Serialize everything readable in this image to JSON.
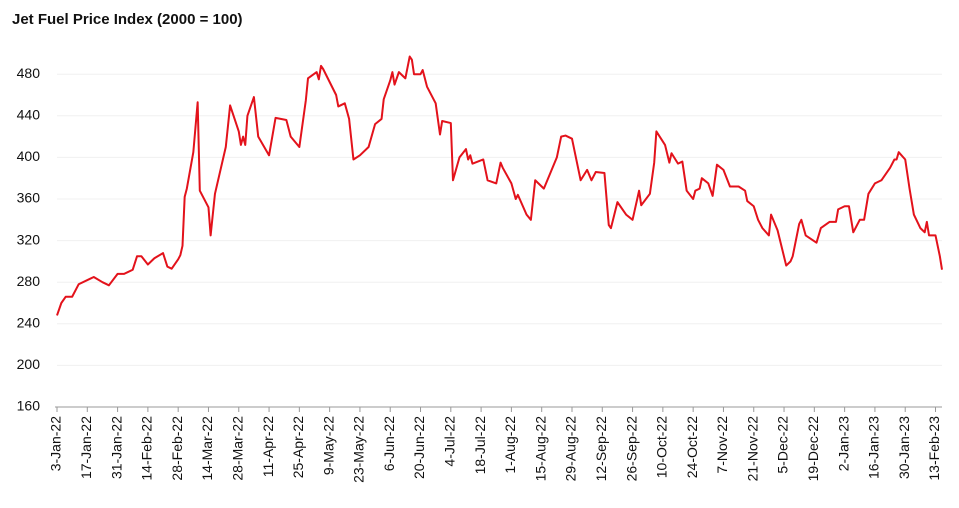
{
  "chart_data": {
    "type": "line",
    "title": "Jet Fuel Price Index (2000 = 100)",
    "color": "#e3121b",
    "grid": true,
    "ylim": [
      160,
      500
    ],
    "yticks": [
      160,
      200,
      240,
      280,
      320,
      360,
      400,
      440,
      480
    ],
    "xlim": [
      "2022-01-03",
      "2023-02-16"
    ],
    "xticks": [
      {
        "value": "2022-01-03",
        "label": "3-Jan-22"
      },
      {
        "value": "2022-01-17",
        "label": "17-Jan-22"
      },
      {
        "value": "2022-01-31",
        "label": "31-Jan-22"
      },
      {
        "value": "2022-02-14",
        "label": "14-Feb-22"
      },
      {
        "value": "2022-02-28",
        "label": "28-Feb-22"
      },
      {
        "value": "2022-03-14",
        "label": "14-Mar-22"
      },
      {
        "value": "2022-03-28",
        "label": "28-Mar-22"
      },
      {
        "value": "2022-04-11",
        "label": "11-Apr-22"
      },
      {
        "value": "2022-04-25",
        "label": "25-Apr-22"
      },
      {
        "value": "2022-05-09",
        "label": "9-May-22"
      },
      {
        "value": "2022-05-23",
        "label": "23-May-22"
      },
      {
        "value": "2022-06-06",
        "label": "6-Jun-22"
      },
      {
        "value": "2022-06-20",
        "label": "20-Jun-22"
      },
      {
        "value": "2022-07-04",
        "label": "4-Jul-22"
      },
      {
        "value": "2022-07-18",
        "label": "18-Jul-22"
      },
      {
        "value": "2022-08-01",
        "label": "1-Aug-22"
      },
      {
        "value": "2022-08-15",
        "label": "15-Aug-22"
      },
      {
        "value": "2022-08-29",
        "label": "29-Aug-22"
      },
      {
        "value": "2022-09-12",
        "label": "12-Sep-22"
      },
      {
        "value": "2022-09-26",
        "label": "26-Sep-22"
      },
      {
        "value": "2022-10-10",
        "label": "10-Oct-22"
      },
      {
        "value": "2022-10-24",
        "label": "24-Oct-22"
      },
      {
        "value": "2022-11-07",
        "label": "7-Nov-22"
      },
      {
        "value": "2022-11-21",
        "label": "21-Nov-22"
      },
      {
        "value": "2022-12-05",
        "label": "5-Dec-22"
      },
      {
        "value": "2022-12-19",
        "label": "19-Dec-22"
      },
      {
        "value": "2023-01-02",
        "label": "2-Jan-23"
      },
      {
        "value": "2023-01-16",
        "label": "16-Jan-23"
      },
      {
        "value": "2023-01-30",
        "label": "30-Jan-23"
      },
      {
        "value": "2023-02-13",
        "label": "13-Feb-23"
      }
    ],
    "x": [
      "2022-01-03",
      "2022-01-05",
      "2022-01-07",
      "2022-01-10",
      "2022-01-13",
      "2022-01-18",
      "2022-01-20",
      "2022-01-24",
      "2022-01-27",
      "2022-01-31",
      "2022-02-03",
      "2022-02-07",
      "2022-02-09",
      "2022-02-11",
      "2022-02-14",
      "2022-02-17",
      "2022-02-21",
      "2022-02-23",
      "2022-02-25",
      "2022-02-28",
      "2022-03-01",
      "2022-03-02",
      "2022-03-03",
      "2022-03-04",
      "2022-03-07",
      "2022-03-09",
      "2022-03-10",
      "2022-03-14",
      "2022-03-15",
      "2022-03-17",
      "2022-03-22",
      "2022-03-24",
      "2022-03-28",
      "2022-03-29",
      "2022-03-30",
      "2022-03-31",
      "2022-04-01",
      "2022-04-04",
      "2022-04-06",
      "2022-04-11",
      "2022-04-14",
      "2022-04-19",
      "2022-04-21",
      "2022-04-25",
      "2022-04-28",
      "2022-04-29",
      "2022-05-03",
      "2022-05-04",
      "2022-05-05",
      "2022-05-06",
      "2022-05-12",
      "2022-05-13",
      "2022-05-16",
      "2022-05-18",
      "2022-05-20",
      "2022-05-23",
      "2022-05-27",
      "2022-05-30",
      "2022-06-02",
      "2022-06-03",
      "2022-06-06",
      "2022-06-07",
      "2022-06-08",
      "2022-06-10",
      "2022-06-13",
      "2022-06-15",
      "2022-06-16",
      "2022-06-17",
      "2022-06-20",
      "2022-06-21",
      "2022-06-23",
      "2022-06-27",
      "2022-06-29",
      "2022-06-30",
      "2022-07-04",
      "2022-07-05",
      "2022-07-08",
      "2022-07-11",
      "2022-07-12",
      "2022-07-13",
      "2022-07-14",
      "2022-07-19",
      "2022-07-21",
      "2022-07-25",
      "2022-07-27",
      "2022-07-28",
      "2022-08-01",
      "2022-08-03",
      "2022-08-04",
      "2022-08-08",
      "2022-08-10",
      "2022-08-12",
      "2022-08-16",
      "2022-08-19",
      "2022-08-22",
      "2022-08-24",
      "2022-08-26",
      "2022-08-29",
      "2022-09-02",
      "2022-09-05",
      "2022-09-07",
      "2022-09-09",
      "2022-09-13",
      "2022-09-15",
      "2022-09-16",
      "2022-09-19",
      "2022-09-23",
      "2022-09-26",
      "2022-09-29",
      "2022-09-30",
      "2022-10-04",
      "2022-10-06",
      "2022-10-07",
      "2022-10-11",
      "2022-10-13",
      "2022-10-14",
      "2022-10-17",
      "2022-10-19",
      "2022-10-21",
      "2022-10-24",
      "2022-10-25",
      "2022-10-27",
      "2022-10-28",
      "2022-10-31",
      "2022-11-02",
      "2022-11-04",
      "2022-11-07",
      "2022-11-10",
      "2022-11-14",
      "2022-11-17",
      "2022-11-18",
      "2022-11-21",
      "2022-11-23",
      "2022-11-25",
      "2022-11-28",
      "2022-11-29",
      "2022-12-02",
      "2022-12-06",
      "2022-12-08",
      "2022-12-09",
      "2022-12-12",
      "2022-12-13",
      "2022-12-15",
      "2022-12-20",
      "2022-12-22",
      "2022-12-26",
      "2022-12-29",
      "2022-12-30",
      "2023-01-02",
      "2023-01-04",
      "2023-01-06",
      "2023-01-09",
      "2023-01-11",
      "2023-01-13",
      "2023-01-16",
      "2023-01-19",
      "2023-01-23",
      "2023-01-25",
      "2023-01-26",
      "2023-01-27",
      "2023-01-30",
      "2023-02-01",
      "2023-02-03",
      "2023-02-06",
      "2023-02-08",
      "2023-02-09",
      "2023-02-10",
      "2023-02-13",
      "2023-02-15",
      "2023-02-16"
    ],
    "values": [
      248,
      260,
      266,
      266,
      278,
      283,
      285,
      280,
      277,
      288,
      288,
      292,
      305,
      305,
      297,
      303,
      308,
      295,
      293,
      302,
      306,
      315,
      362,
      370,
      405,
      453,
      368,
      352,
      325,
      365,
      410,
      450,
      425,
      412,
      420,
      412,
      440,
      458,
      420,
      402,
      438,
      436,
      420,
      410,
      455,
      476,
      482,
      475,
      488,
      485,
      460,
      449,
      452,
      437,
      398,
      402,
      410,
      432,
      437,
      456,
      474,
      482,
      470,
      482,
      476,
      497,
      494,
      480,
      480,
      484,
      468,
      452,
      422,
      435,
      433,
      378,
      400,
      408,
      398,
      402,
      394,
      398,
      378,
      375,
      395,
      390,
      375,
      360,
      364,
      345,
      340,
      378,
      370,
      385,
      400,
      420,
      421,
      418,
      378,
      388,
      378,
      386,
      385,
      335,
      332,
      357,
      345,
      340,
      368,
      354,
      365,
      395,
      425,
      412,
      395,
      404,
      394,
      396,
      368,
      360,
      368,
      370,
      380,
      375,
      363,
      393,
      388,
      372,
      372,
      368,
      358,
      353,
      340,
      332,
      325,
      345,
      330,
      296,
      300,
      305,
      336,
      340,
      325,
      318,
      332,
      338,
      338,
      350,
      353,
      353,
      328,
      340,
      340,
      365,
      375,
      378,
      390,
      398,
      398,
      405,
      398,
      370,
      345,
      332,
      328,
      338,
      325,
      325,
      305,
      292
    ]
  }
}
